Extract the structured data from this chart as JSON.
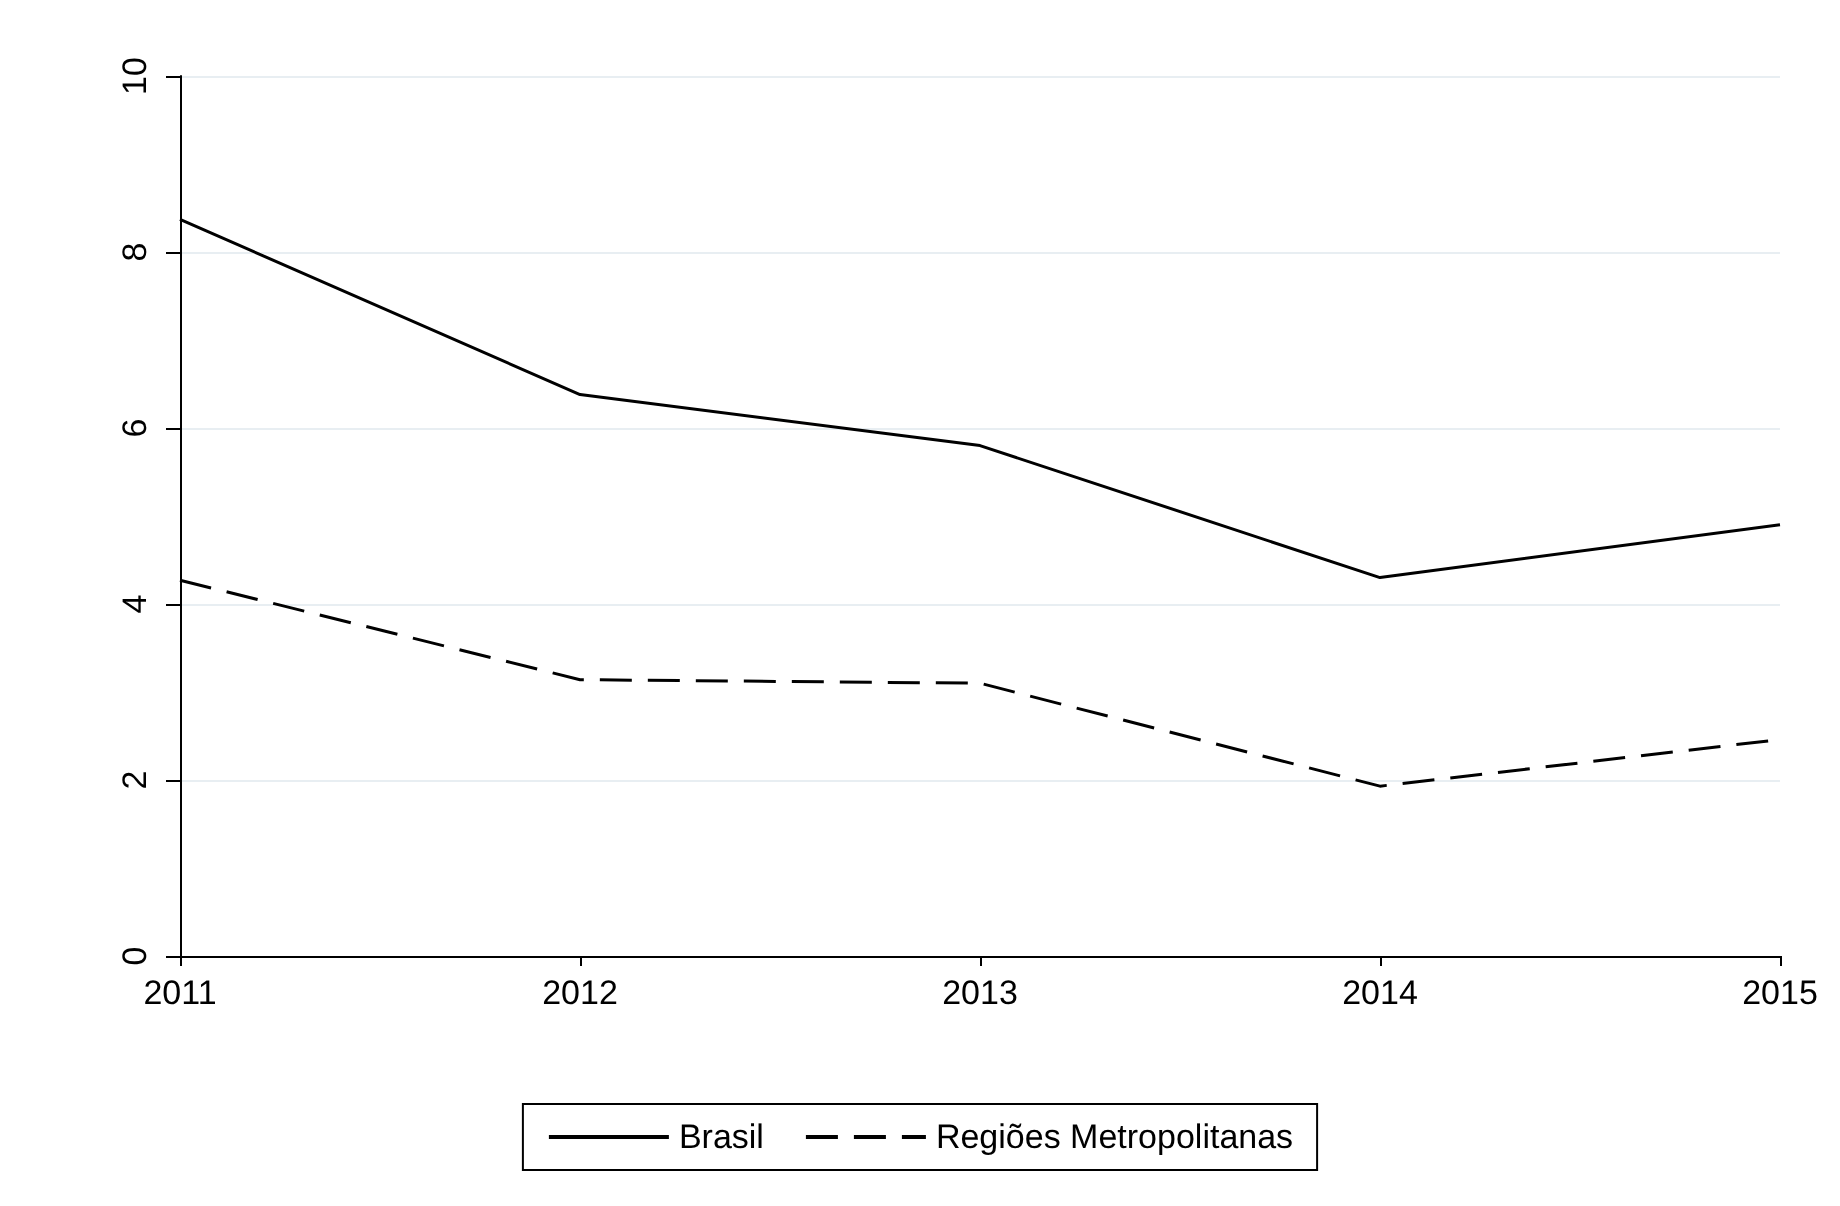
{
  "chart_data": {
    "type": "line",
    "categories": [
      "2011",
      "2012",
      "2013",
      "2014",
      "2015"
    ],
    "series": [
      {
        "name": "Brasil",
        "color": "#000000",
        "values": [
          8.37,
          6.38,
          5.8,
          4.3,
          4.9
        ],
        "line_style": "solid"
      },
      {
        "name": "Regiões Metropolitanas",
        "color": "#000000",
        "values": [
          4.27,
          3.14,
          3.1,
          1.93,
          2.46
        ],
        "line_style": "dashed"
      }
    ],
    "ylim": [
      0,
      10
    ],
    "yticks": [
      0,
      2,
      4,
      6,
      8,
      10
    ],
    "grid": "y",
    "legend": "bottom",
    "marker": "none"
  }
}
